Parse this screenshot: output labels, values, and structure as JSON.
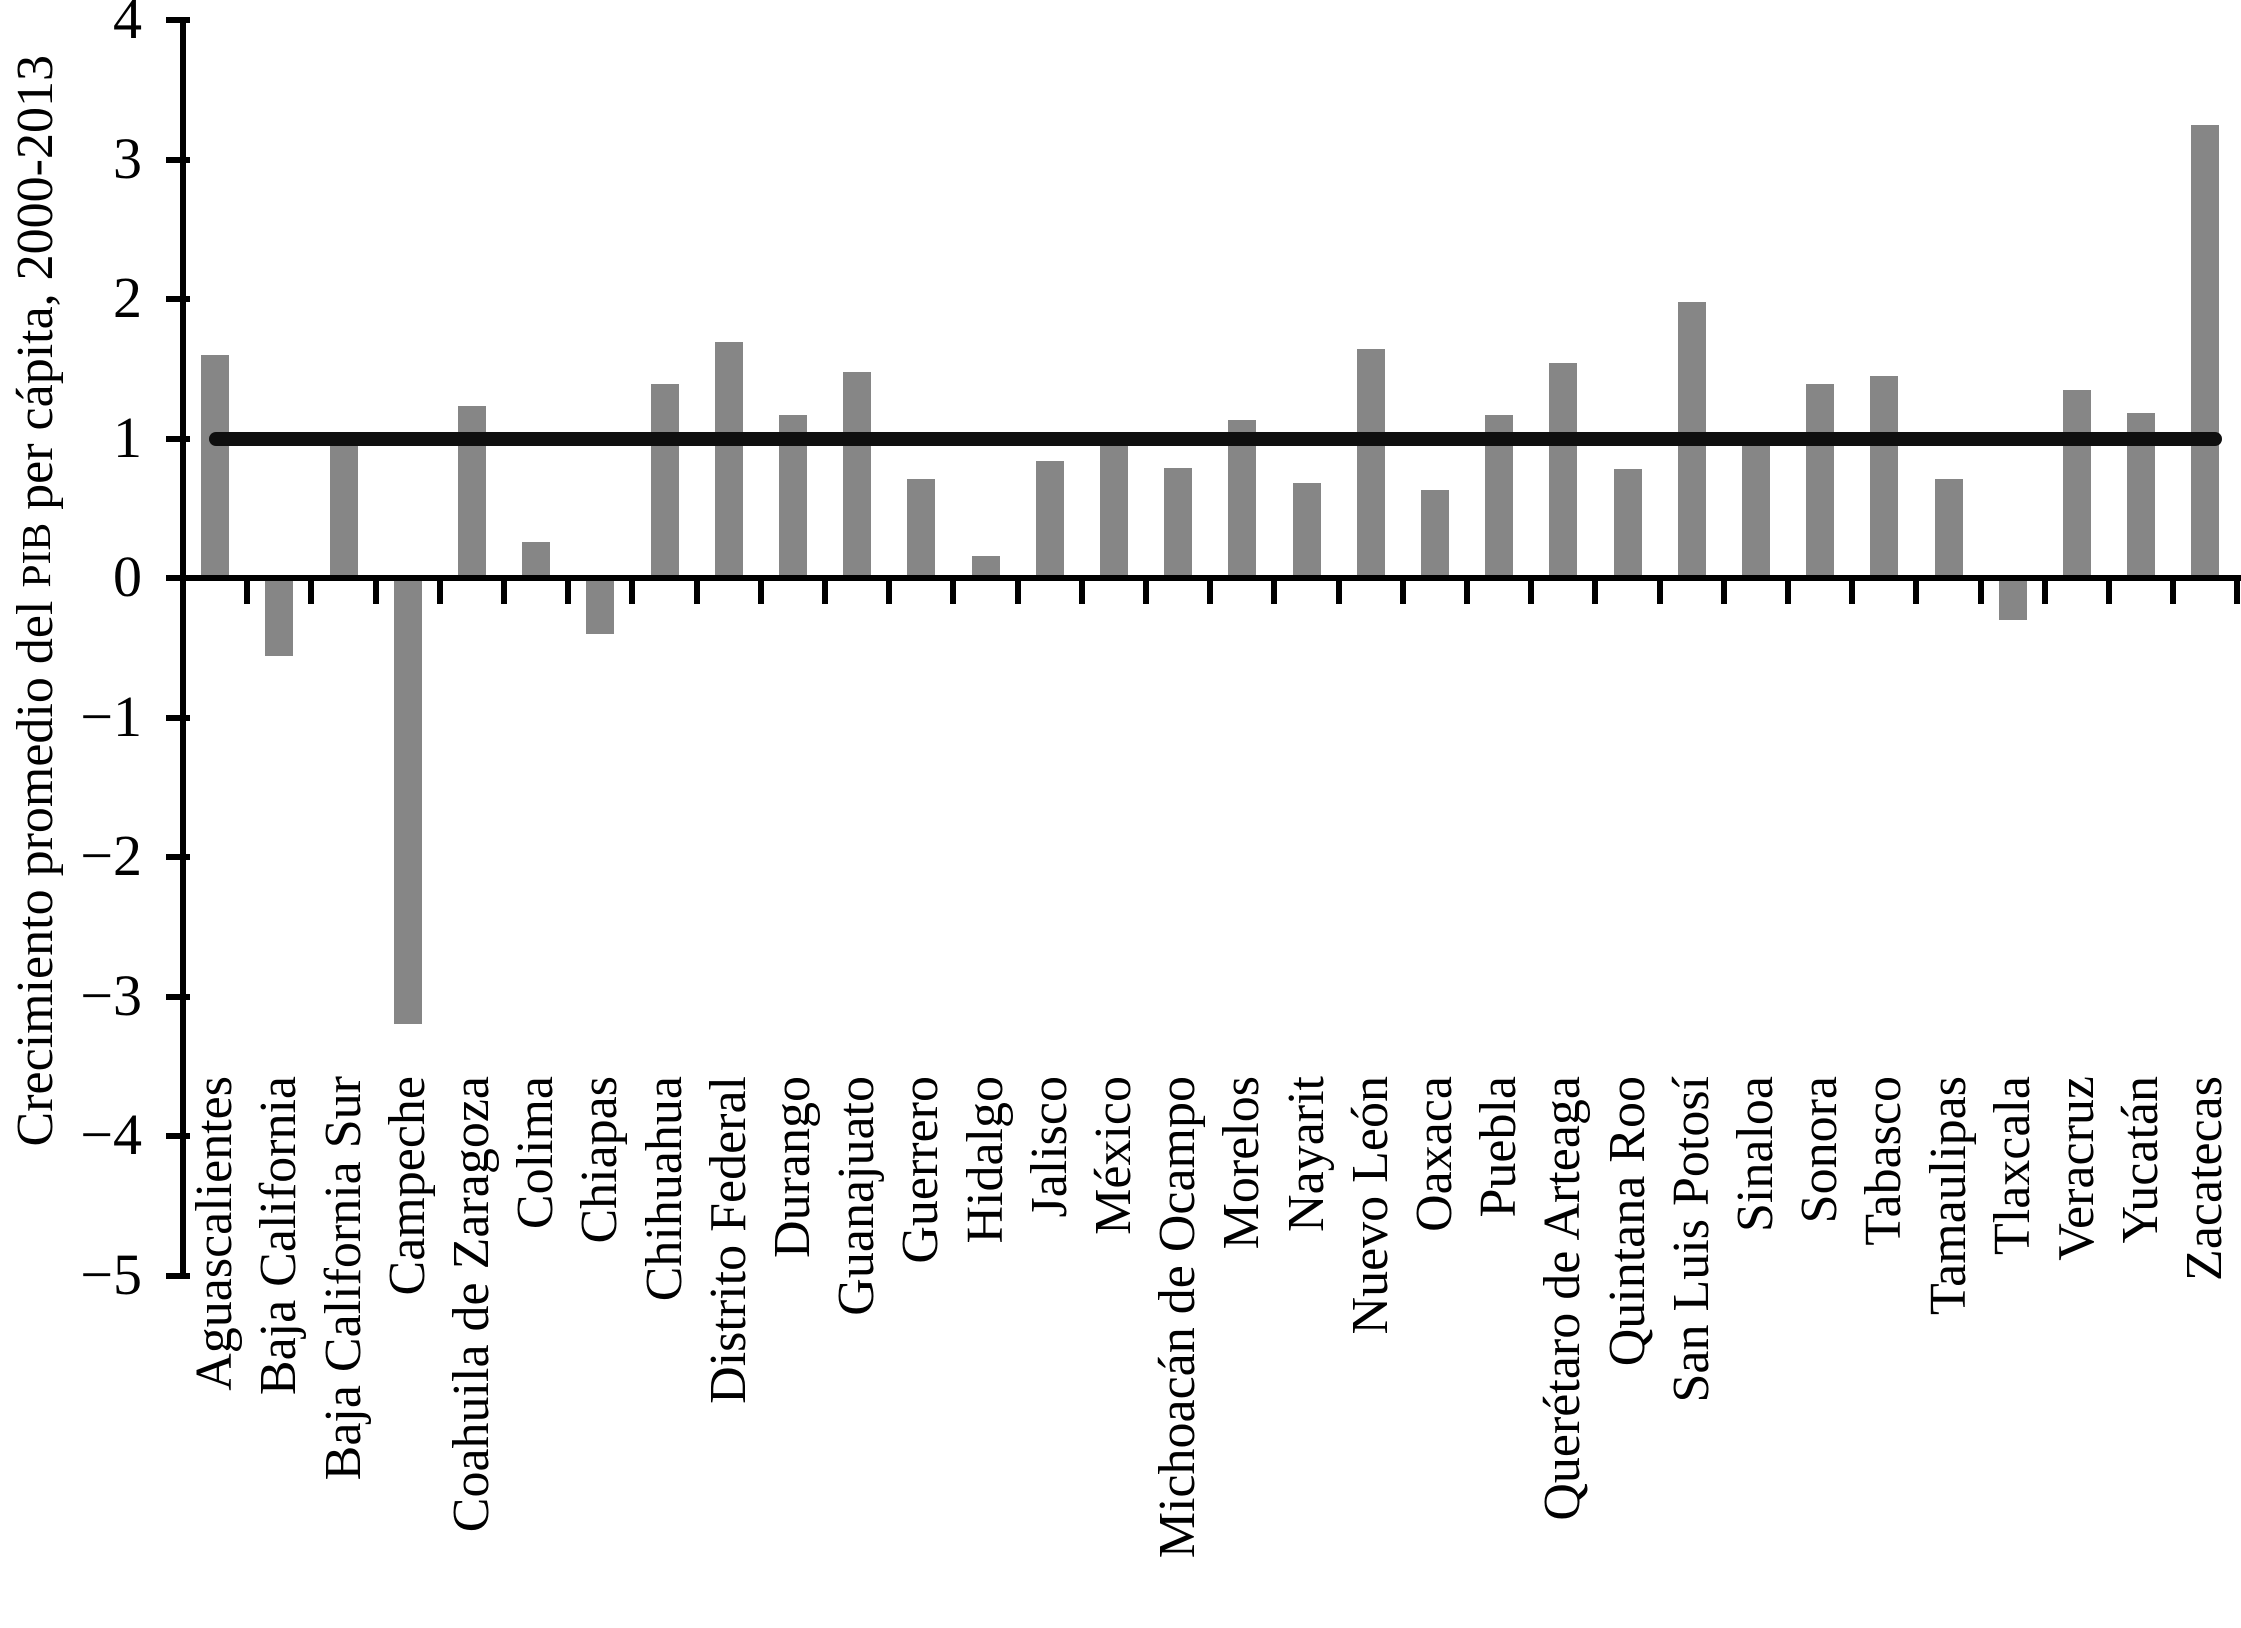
{
  "figure": {
    "background": "#ffffff",
    "text_color": "#000000"
  },
  "y_axis": {
    "ticks": [
      {
        "label": "4",
        "value": 4
      },
      {
        "label": "3",
        "value": 3
      },
      {
        "label": "2",
        "value": 2
      },
      {
        "label": "1",
        "value": 1
      },
      {
        "label": "0",
        "value": 0
      },
      {
        "label": "−1",
        "value": -1
      },
      {
        "label": "−2",
        "value": -2
      },
      {
        "label": "−3",
        "value": -3
      },
      {
        "label": "−4",
        "value": -4
      },
      {
        "label": "−5",
        "value": -5
      }
    ]
  },
  "chart_data": {
    "type": "bar",
    "title": "",
    "xlabel": "",
    "ylabel": "Crecimiento promedio del PIB per cápita, 2000-2013",
    "ylabel_parts": [
      "Crecimiento promedio del ",
      "PIB",
      " per cápita, 2000-2013"
    ],
    "ylim": [
      -5,
      4
    ],
    "grid": false,
    "legend_position": "none",
    "bar_color": "#868686",
    "reference_line": {
      "value": 1,
      "color": "#0f0f0f"
    },
    "categories": [
      "Aguascalientes",
      "Baja California",
      "Baja California Sur",
      "Campeche",
      "Coahuila de Zaragoza",
      "Colima",
      "Chiapas",
      "Chihuahua",
      "Distrito Federal",
      "Durango",
      "Guanajuato",
      "Guerrero",
      "Hidalgo",
      "Jalisco",
      "México",
      "Michoacán de Ocampo",
      "Morelos",
      "Nayarit",
      "Nuevo León",
      "Oaxaca",
      "Puebla",
      "Querétaro de Arteaga",
      "Quintana Roo",
      "San Luis Potosí",
      "Sinaloa",
      "Sonora",
      "Tabasco",
      "Tamaulipas",
      "Tlaxcala",
      "Veracruz",
      "Yucatán",
      "Zacatecas"
    ],
    "values": [
      1.6,
      -0.56,
      0.97,
      -3.2,
      1.23,
      0.26,
      -0.4,
      1.39,
      1.69,
      1.17,
      1.48,
      0.71,
      0.16,
      0.84,
      0.97,
      0.79,
      1.13,
      0.68,
      1.64,
      0.63,
      1.17,
      1.54,
      0.78,
      1.98,
      0.96,
      1.39,
      1.45,
      0.71,
      -0.3,
      1.35,
      1.18,
      3.25
    ]
  }
}
